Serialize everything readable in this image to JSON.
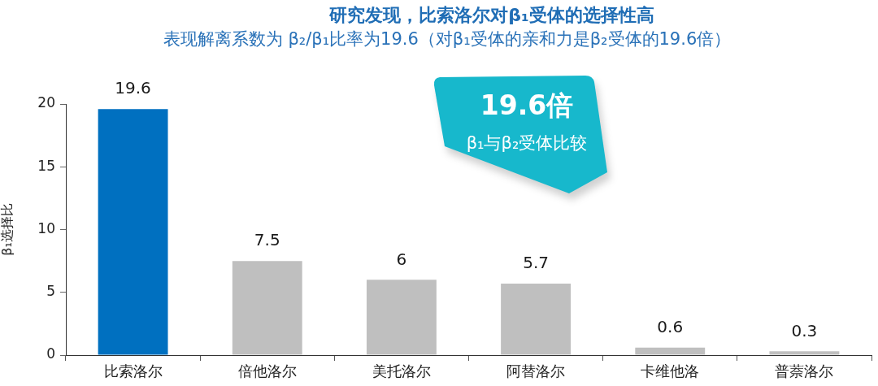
{
  "chart_data": {
    "type": "bar",
    "title": "研究发现，比索洛尔对β₁受体的选择性高",
    "subtitle": "表现解离系数为 β₂/β₁比率为19.6（对β₁受体的亲和力是β₂受体的19.6倍）",
    "ylabel": "β₁选择比",
    "categories": [
      "比索洛尔",
      "倍他洛尔",
      "美托洛尔",
      "阿替洛尔",
      "卡维他洛",
      "普萘洛尔"
    ],
    "values": [
      19.6,
      7.5,
      6,
      5.7,
      0.6,
      0.3
    ],
    "colors": [
      "#0070c0",
      "#bfbfbf",
      "#bfbfbf",
      "#bfbfbf",
      "#bfbfbf",
      "#bfbfbf"
    ],
    "ylim": [
      0,
      20
    ],
    "yticks": [
      0,
      5,
      10,
      15,
      20
    ],
    "data_labels": true,
    "annotations": [
      "19.6倍",
      "β₁与β₂受体比较"
    ]
  }
}
